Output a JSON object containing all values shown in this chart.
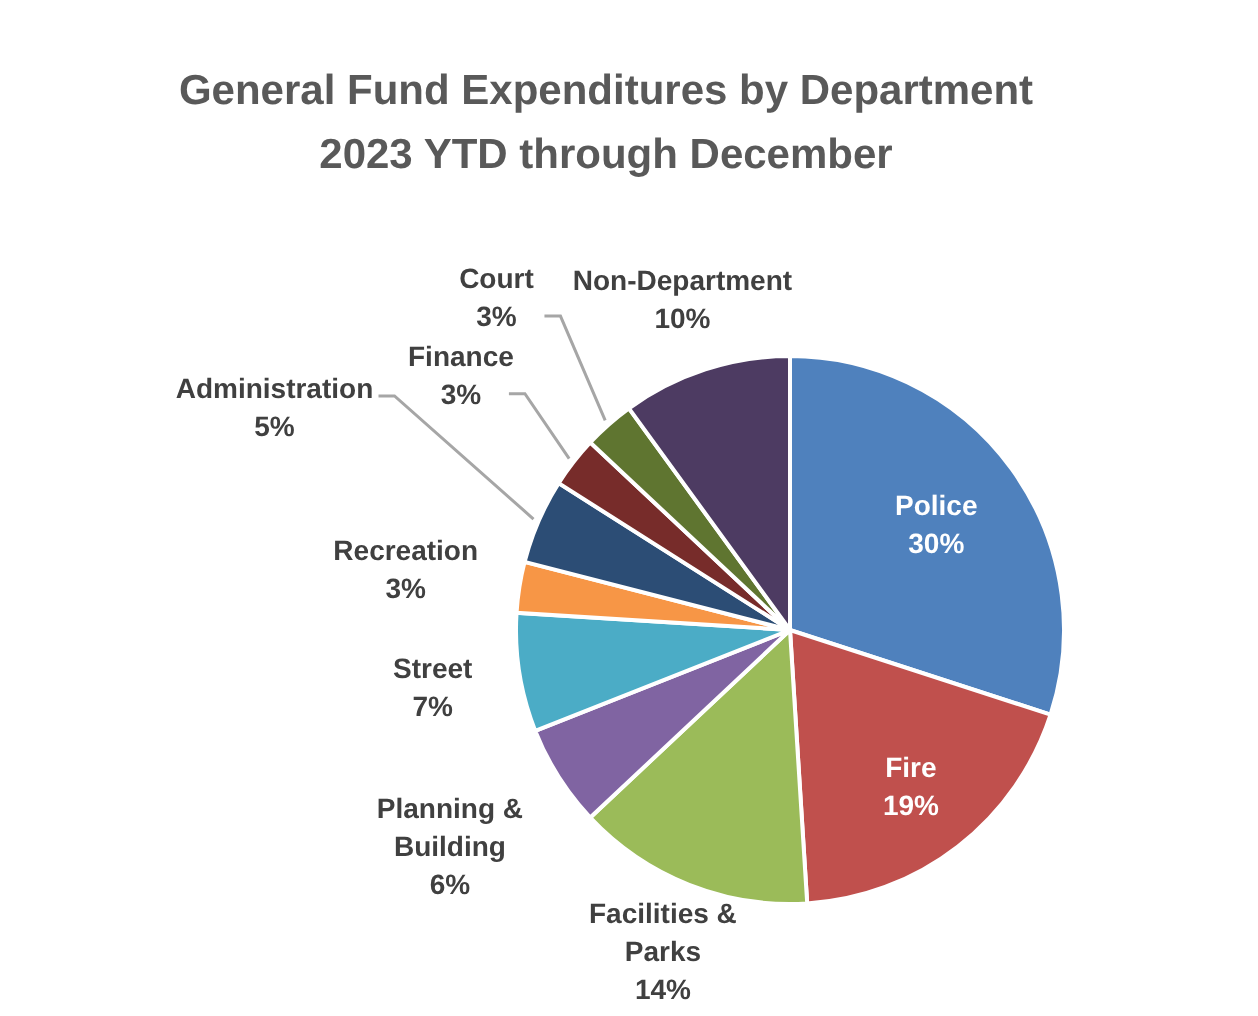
{
  "chart_data": {
    "type": "pie",
    "title": "General Fund Expenditures by Department",
    "subtitle": "2023 YTD through December",
    "categories": [
      "Police",
      "Fire",
      "Facilities & Parks",
      "Planning & Building",
      "Street",
      "Recreation",
      "Administration",
      "Finance",
      "Court",
      "Non-Department"
    ],
    "values": [
      30,
      19,
      14,
      6,
      7,
      3,
      5,
      3,
      3,
      10
    ],
    "value_labels": [
      "30%",
      "19%",
      "14%",
      "6%",
      "7%",
      "3%",
      "5%",
      "3%",
      "3%",
      "10%"
    ],
    "colors": [
      "#4f81bd",
      "#c0504d",
      "#9bbb59",
      "#8064a2",
      "#4bacc6",
      "#f79646",
      "#2c4d75",
      "#772c2a",
      "#5f7530",
      "#4d3b62"
    ],
    "legend": false
  }
}
